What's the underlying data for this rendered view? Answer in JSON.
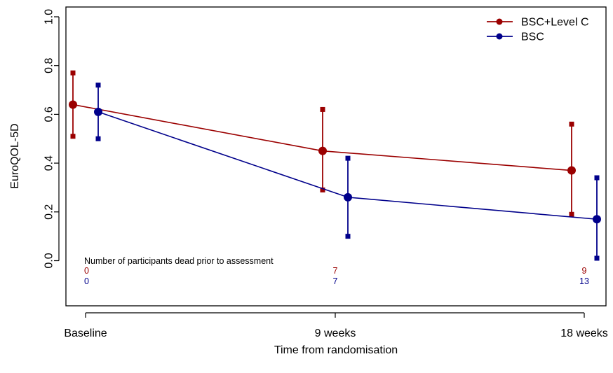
{
  "chart_data": {
    "type": "line",
    "xlabel": "Time from randomisation",
    "ylabel": "EuroQOL-5D",
    "categories": [
      "Baseline",
      "9 weeks",
      "18 weeks"
    ],
    "yticks": [
      "0.0",
      "0.2",
      "0.4",
      "0.6",
      "0.8",
      "1.0"
    ],
    "ylim": [
      -0.2,
      1.0
    ],
    "legend_position": "top-right",
    "grid": false,
    "series": [
      {
        "name": "BSC+Level C",
        "color": "#9b0000",
        "values": [
          0.64,
          0.45,
          0.37
        ],
        "lower": [
          0.51,
          0.29,
          0.19
        ],
        "upper": [
          0.77,
          0.62,
          0.56
        ],
        "deaths": [
          "0",
          "7",
          "9"
        ]
      },
      {
        "name": "BSC",
        "color": "#00008b",
        "values": [
          0.61,
          0.26,
          0.17
        ],
        "lower": [
          0.5,
          0.1,
          0.01
        ],
        "upper": [
          0.72,
          0.42,
          0.34
        ],
        "deaths": [
          "0",
          "7",
          "13"
        ]
      }
    ],
    "annotation": "Number of participants dead prior to assessment"
  }
}
